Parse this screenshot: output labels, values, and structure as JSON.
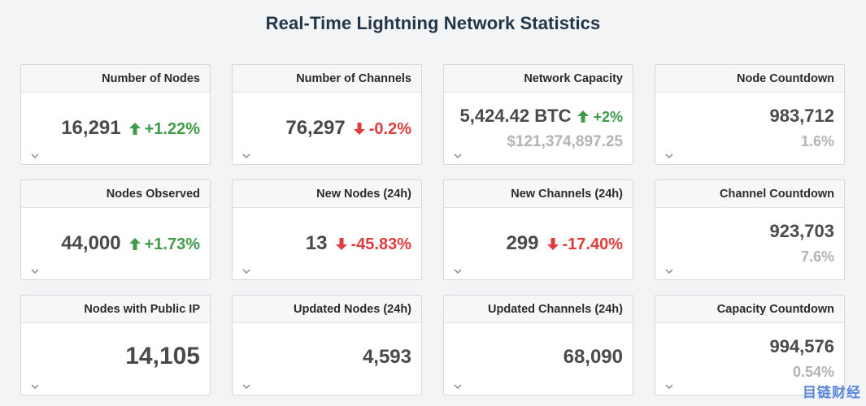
{
  "page": {
    "title": "Real-Time Lightning Network Statistics"
  },
  "colors": {
    "up": "#3f9a4a",
    "down": "#e03c3c",
    "muted": "#b3b3b3",
    "title": "#22364a"
  },
  "cards": {
    "nodes": {
      "title": "Number of Nodes",
      "value": "16,291",
      "change": "+1.22%",
      "direction": "up"
    },
    "channels": {
      "title": "Number of Channels",
      "value": "76,297",
      "change": "-0.2%",
      "direction": "down"
    },
    "capacity": {
      "title": "Network Capacity",
      "value": "5,424.42 BTC",
      "change": "+2%",
      "direction": "up",
      "usd": "$121,374,897.25"
    },
    "node_countdown": {
      "title": "Node Countdown",
      "value": "983,712",
      "percent": "1.6%"
    },
    "nodes_observed": {
      "title": "Nodes Observed",
      "value": "44,000",
      "change": "+1.73%",
      "direction": "up"
    },
    "new_nodes": {
      "title": "New Nodes (24h)",
      "value": "13",
      "change": "-45.83%",
      "direction": "down"
    },
    "new_channels": {
      "title": "New Channels (24h)",
      "value": "299",
      "change": "-17.40%",
      "direction": "down"
    },
    "channel_countdown": {
      "title": "Channel Countdown",
      "value": "923,703",
      "percent": "7.6%"
    },
    "public_ip": {
      "title": "Nodes with Public IP",
      "value": "14,105"
    },
    "updated_nodes": {
      "title": "Updated Nodes (24h)",
      "value": "4,593"
    },
    "updated_channels": {
      "title": "Updated Channels (24h)",
      "value": "68,090"
    },
    "capacity_countdown": {
      "title": "Capacity Countdown",
      "value": "994,576",
      "percent": "0.54%"
    }
  },
  "icons": {
    "up": "arrow-up-icon",
    "down": "arrow-down-icon",
    "expand": "chevron-down-icon"
  },
  "watermark": "目链财经"
}
